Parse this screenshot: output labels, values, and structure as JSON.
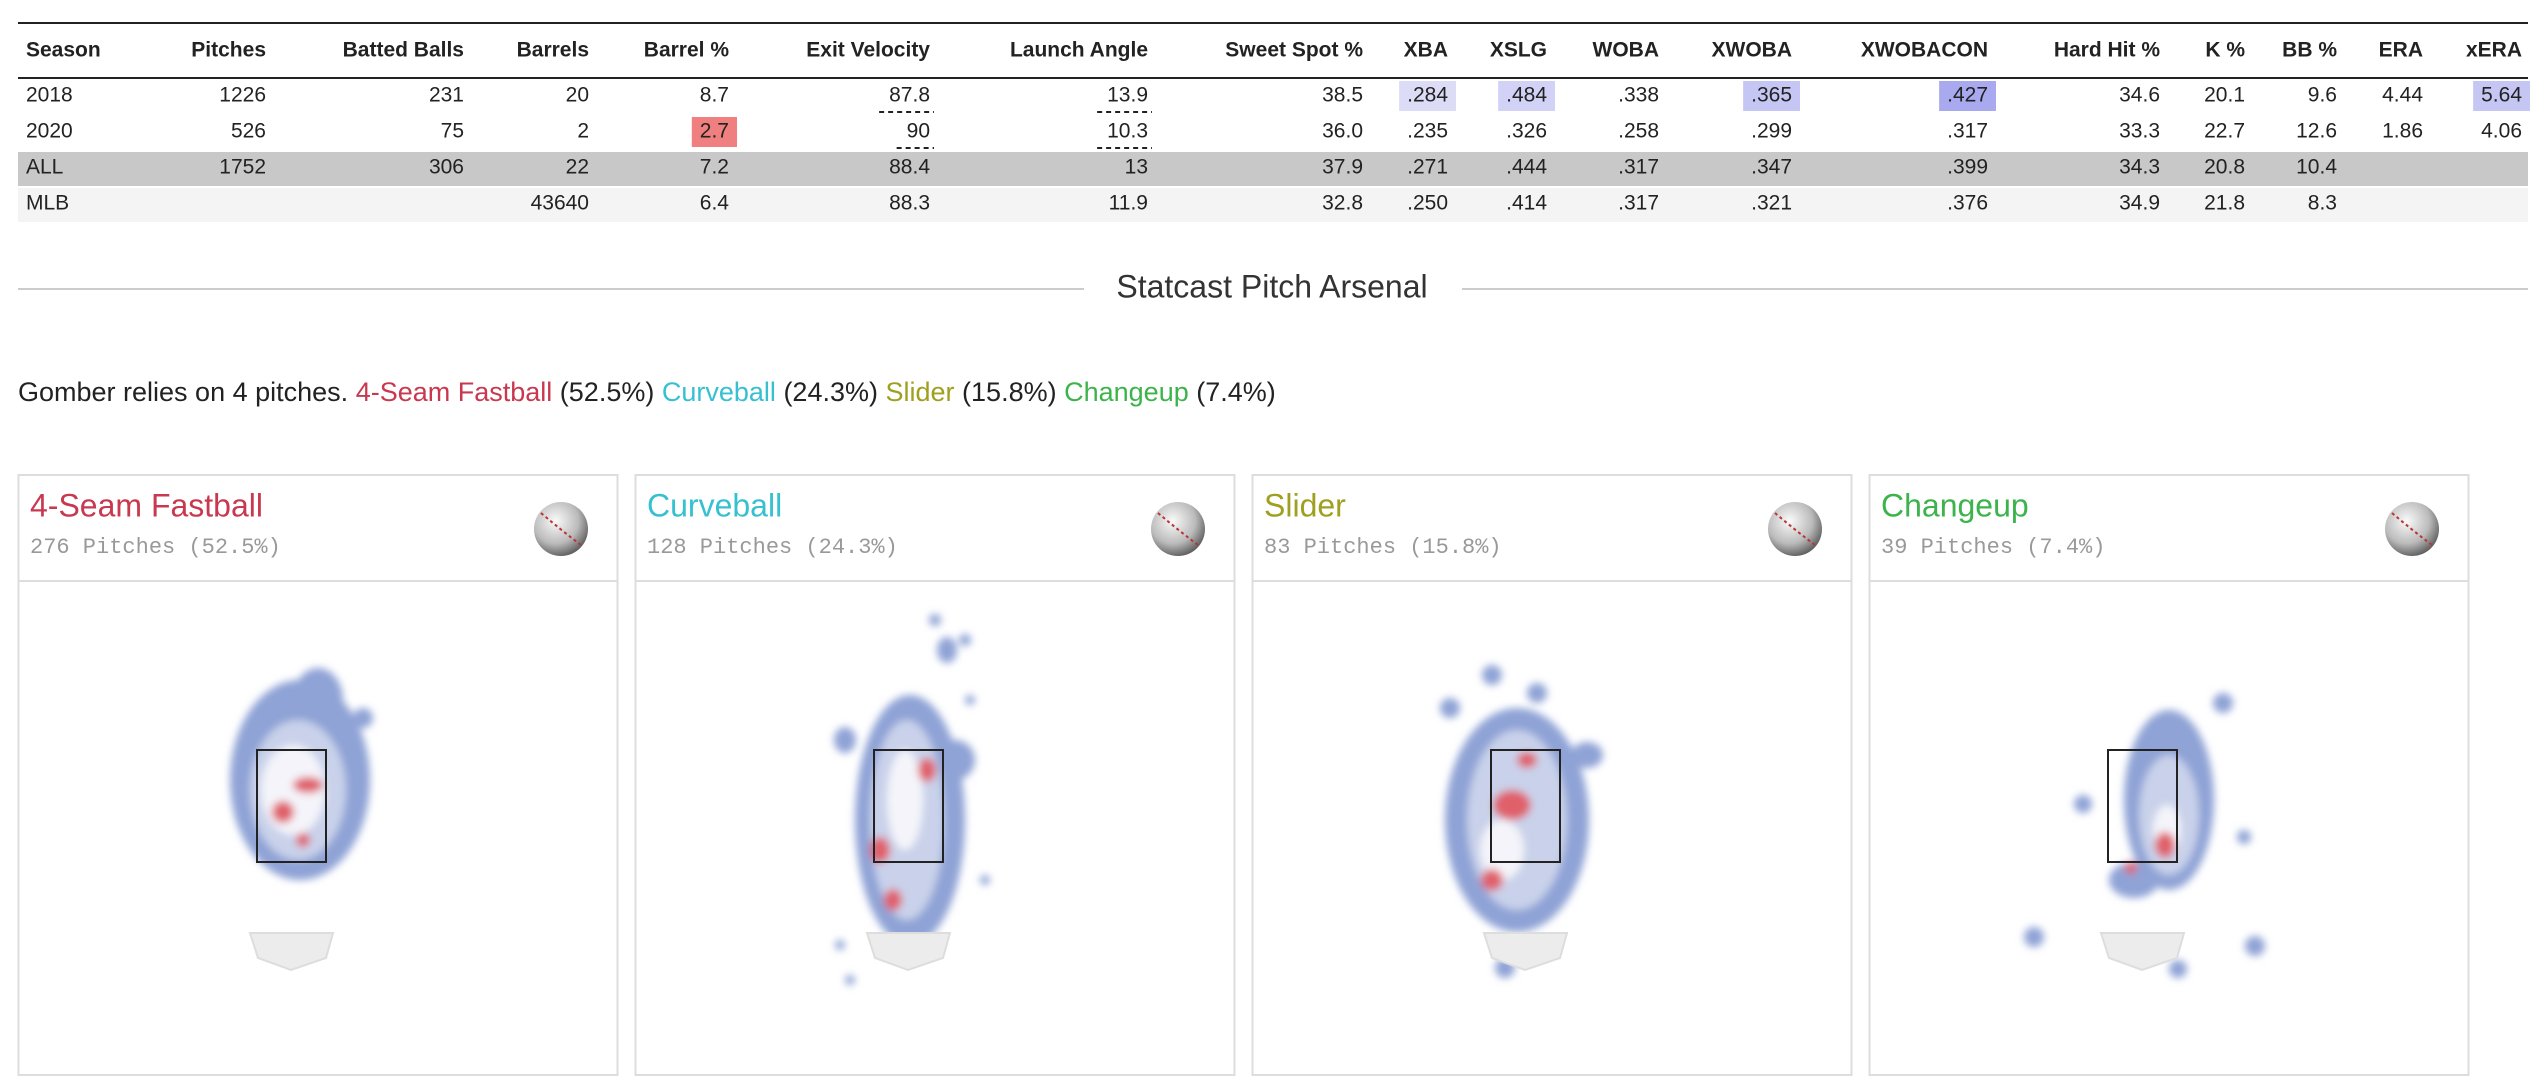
{
  "table": {
    "columns": [
      "Season",
      "Pitches",
      "Batted Balls",
      "Barrels",
      "Barrel %",
      "Exit Velocity",
      "Launch Angle",
      "Sweet Spot %",
      "XBA",
      "XSLG",
      "WOBA",
      "XWOBA",
      "XWOBACON",
      "Hard Hit %",
      "K %",
      "BB %",
      "ERA",
      "xERA"
    ],
    "rows": [
      [
        "2018",
        "1226",
        "231",
        "20",
        "8.7",
        "87.8",
        "13.9",
        "38.5",
        ".284",
        ".484",
        ".338",
        ".365",
        ".427",
        "34.6",
        "20.1",
        "9.6",
        "4.44",
        "5.64"
      ],
      [
        "2020",
        "526",
        "75",
        "2",
        "2.7",
        "90",
        "10.3",
        "36.0",
        ".235",
        ".326",
        ".258",
        ".299",
        ".317",
        "33.3",
        "22.7",
        "12.6",
        "1.86",
        "4.06"
      ],
      [
        "ALL",
        "1752",
        "306",
        "22",
        "7.2",
        "88.4",
        "13",
        "37.9",
        ".271",
        ".444",
        ".317",
        ".347",
        ".399",
        "34.3",
        "20.8",
        "10.4"
      ],
      [
        "MLB",
        null,
        null,
        "43640",
        "6.4",
        "88.3",
        "11.9",
        "32.8",
        ".250",
        ".414",
        ".317",
        ".321",
        ".376",
        "34.9",
        "21.8",
        "8.3"
      ]
    ]
  },
  "section_title": "Statcast Pitch Arsenal",
  "intro": {
    "lead": "Gomber relies on 4 pitches.",
    "shares": [
      "(52.5%)",
      "(24.3%)",
      "(15.8%)",
      "(7.4%)"
    ]
  },
  "cards": [
    {
      "name": "4-Seam Fastball",
      "subtitle": "276 Pitches (52.5%)",
      "color": "#c8384f"
    },
    {
      "name": "Curveball",
      "subtitle": "128 Pitches (24.3%)",
      "color": "#36c0d0"
    },
    {
      "name": "Slider",
      "subtitle": "83 Pitches (15.8%)",
      "color": "#a0a020"
    },
    {
      "name": "Changeup",
      "subtitle": "39 Pitches (7.4%)",
      "color": "#3cb44b"
    }
  ]
}
